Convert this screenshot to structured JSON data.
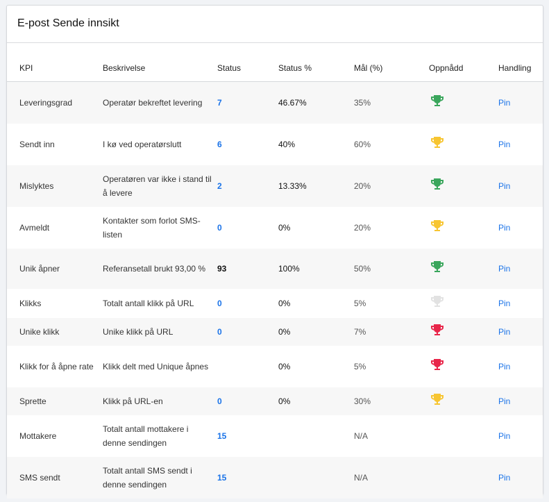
{
  "title": "E-post Sende innsikt",
  "columns": [
    "KPI",
    "Beskrivelse",
    "Status",
    "Status %",
    "Mål (%)",
    "Oppnådd",
    "Handling"
  ],
  "trophy_colors": {
    "green": "#3aa65c",
    "yellow": "#f7c531",
    "gray": "#e2e2e2",
    "red": "#e8264a"
  },
  "rows": [
    {
      "kpi": "Leveringsgrad",
      "desc": "Operatør bekreftet levering",
      "status": "7",
      "status_pct": "46.67%",
      "goal": "35%",
      "achieved": "green",
      "action": "Pin"
    },
    {
      "kpi": "Sendt inn",
      "desc": "I kø ved operatørslutt",
      "status": "6",
      "status_pct": "40%",
      "goal": "60%",
      "achieved": "yellow",
      "action": "Pin"
    },
    {
      "kpi": "Mislyktes",
      "desc": "Operatøren var ikke i stand til å levere",
      "status": "2",
      "status_pct": "13.33%",
      "goal": "20%",
      "achieved": "green",
      "action": "Pin"
    },
    {
      "kpi": "Avmeldt",
      "desc": "Kontakter som forlot SMS-listen",
      "status": "0",
      "status_pct": "0%",
      "goal": "20%",
      "achieved": "yellow",
      "action": "Pin"
    },
    {
      "kpi": "Unik åpner",
      "desc": "Referansetall brukt 93,00 %",
      "status": "93",
      "status_pct": "100%",
      "goal": "50%",
      "achieved": "green",
      "action": "Pin"
    },
    {
      "kpi": "Klikks",
      "desc": "Totalt antall klikk på URL",
      "status": "0",
      "status_pct": "0%",
      "goal": "5%",
      "achieved": "gray",
      "action": "Pin"
    },
    {
      "kpi": "Unike klikk",
      "desc": "Unike klikk på URL",
      "status": "0",
      "status_pct": "0%",
      "goal": "7%",
      "achieved": "red",
      "action": "Pin"
    },
    {
      "kpi": "Klikk for å åpne rate",
      "desc": "Klikk delt med Unique åpnes",
      "status": "",
      "status_pct": "0%",
      "goal": "5%",
      "achieved": "red",
      "action": "Pin"
    },
    {
      "kpi": "Sprette",
      "desc": "Klikk på URL-en",
      "status": "0",
      "status_pct": "0%",
      "goal": "30%",
      "achieved": "yellow",
      "action": "Pin"
    },
    {
      "kpi": "Mottakere",
      "desc": "Totalt antall mottakere i denne sendingen",
      "status": "15",
      "status_pct": "",
      "goal": "N/A",
      "achieved": "",
      "action": "Pin"
    },
    {
      "kpi": "SMS sendt",
      "desc": "Totalt antall SMS sendt i denne sendingen",
      "status": "15",
      "status_pct": "",
      "goal": "N/A",
      "achieved": "",
      "action": "Pin"
    }
  ]
}
